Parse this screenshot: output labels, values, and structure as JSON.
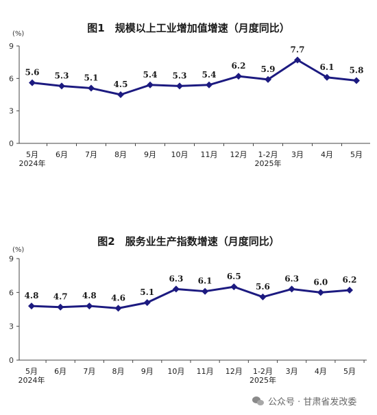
{
  "chart_data": [
    {
      "type": "line",
      "title": "图1　规模以上工业增加值增速（月度同比）",
      "unit": "(%)",
      "categories": [
        "5月",
        "6月",
        "7月",
        "8月",
        "9月",
        "10月",
        "11月",
        "12月",
        "1-2月",
        "3月",
        "4月",
        "5月"
      ],
      "year_labels": [
        "2024年",
        "",
        "",
        "",
        "",
        "",
        "",
        "",
        "2025年",
        "",
        "",
        ""
      ],
      "values": [
        5.6,
        5.3,
        5.1,
        4.5,
        5.4,
        5.3,
        5.4,
        6.2,
        5.9,
        7.7,
        6.1,
        5.8
      ],
      "value_labels": [
        "5.6",
        "5.3",
        "5.1",
        "4.5",
        "5.4",
        "5.3",
        "5.4",
        "6.2",
        "5.9",
        "7.7",
        "6.1",
        "5.8"
      ],
      "yticks": [
        "0",
        "3",
        "6",
        "9"
      ],
      "ylim": [
        0,
        9
      ],
      "series_color": "#1c1a80",
      "grid": false
    },
    {
      "type": "line",
      "title": "图2　服务业生产指数增速（月度同比）",
      "unit": "(%)",
      "categories": [
        "5月",
        "6月",
        "7月",
        "8月",
        "9月",
        "10月",
        "11月",
        "12月",
        "1-2月",
        "3月",
        "4月",
        "5月"
      ],
      "year_labels": [
        "2024年",
        "",
        "",
        "",
        "",
        "",
        "",
        "",
        "2025年",
        "",
        "",
        ""
      ],
      "values": [
        4.8,
        4.7,
        4.8,
        4.6,
        5.1,
        6.3,
        6.1,
        6.5,
        5.6,
        6.3,
        6.0,
        6.2
      ],
      "value_labels": [
        "4.8",
        "4.7",
        "4.8",
        "4.6",
        "5.1",
        "6.3",
        "6.1",
        "6.5",
        "5.6",
        "6.3",
        "6.0",
        "6.2"
      ],
      "yticks": [
        "0",
        "3",
        "6",
        "9"
      ],
      "ylim": [
        0,
        9
      ],
      "series_color": "#1c1a80",
      "grid": false
    }
  ],
  "watermark": {
    "icon": "wechat-icon",
    "text": "公众号 · 甘肃省发改委"
  }
}
